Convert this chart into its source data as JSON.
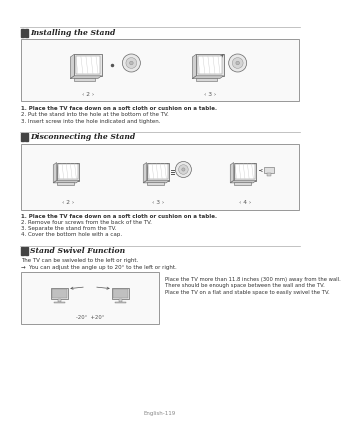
{
  "bg_color": "#ffffff",
  "title_color": "#222222",
  "text_color": "#333333",
  "border_color": "#999999",
  "section1_title": "Installing the Stand",
  "section2_title": "Disconnecting the Stand",
  "section3_title": "Stand Swivel Function",
  "sec1_instructions": [
    "1. Place the TV face down on a soft cloth or cushion on a table.",
    "2. Put the stand into the hole at the bottom of the TV.",
    "3. Insert screw into the hole indicated and tighten."
  ],
  "sec2_instructions": [
    "1. Place the TV face down on a soft cloth or cushion on a table.",
    "2. Remove four screws from the back of the TV.",
    "3. Separate the stand from the TV.",
    "4. Cover the bottom hole with a cap."
  ],
  "sec3_line1": "The TV can be swiveled to the left or right.",
  "sec3_line2": "→  You can adjust the angle up to 20° to the left or right.",
  "sec3_note1": "Place the TV more than 11.8 inches (300 mm) away from the wall.",
  "sec3_note2": "There should be enough space between the wall and the TV.",
  "sec3_note3": "Place the TV on a flat and stable space to easily swivel the TV.",
  "footer": "English-119",
  "label2": "‹ 2 ›",
  "label3": "‹ 3 ›",
  "label2b": "‹ 2 ›",
  "label3b": "‹ 3 ›",
  "label4b": "‹ 4 ›",
  "swivel_label": "-20°  +20°"
}
